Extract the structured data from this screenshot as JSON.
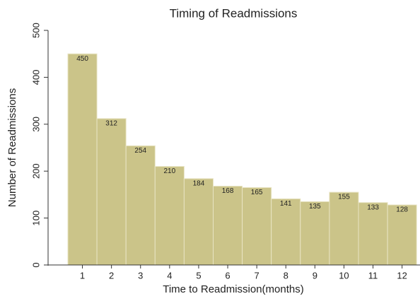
{
  "chart_data": {
    "type": "bar",
    "title": "Timing of Readmissions",
    "x_label": "Time to Readmission(months)",
    "y_label": "Number of Readmissions",
    "categories": [
      "1",
      "2",
      "3",
      "4",
      "5",
      "6",
      "7",
      "8",
      "9",
      "10",
      "11",
      "12"
    ],
    "values": [
      450,
      312,
      254,
      210,
      184,
      168,
      165,
      141,
      135,
      155,
      133,
      128
    ],
    "color": "#cbc489",
    "ylim": [
      0,
      500
    ],
    "yticks": [
      0,
      100,
      200,
      300,
      400,
      500
    ],
    "grid": false
  }
}
